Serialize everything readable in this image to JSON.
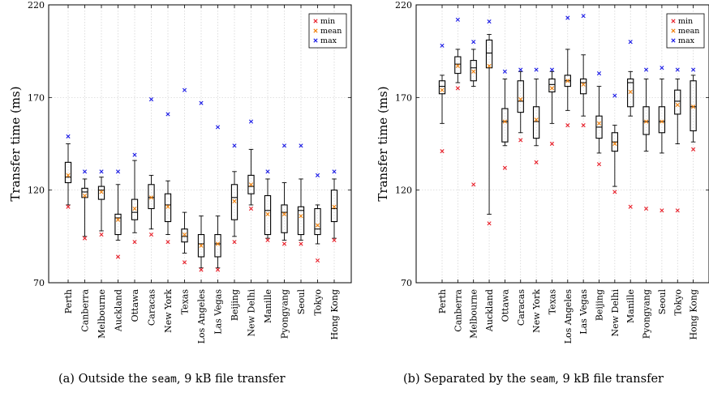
{
  "chart_data": [
    {
      "type": "box",
      "ylabel": "Transfer time (ms)",
      "ylim": [
        70,
        220
      ],
      "yticks": [
        70,
        120,
        170,
        220
      ],
      "grid": true,
      "legend_position": "top-right",
      "legend": {
        "min": "min",
        "mean": "mean",
        "max": "max"
      },
      "colors": {
        "min": "#e8202a",
        "mean": "#f07f0a",
        "max": "#1a1ae6",
        "box": "#000000"
      },
      "caption": {
        "label": "(a)",
        "pre": "Outside the ",
        "code": "seam",
        "post": ", 9 kB file transfer"
      },
      "categories": [
        "Perth",
        "Canberra",
        "Melbourne",
        "Auckland",
        "Ottawa",
        "Caracas",
        "New York",
        "Texas",
        "Los Angeles",
        "Las Vegas",
        "Beijing",
        "New Delhi",
        "Manille",
        "Pyongyang",
        "Seoul",
        "Tokyo",
        "Hong Kong"
      ],
      "boxes": [
        {
          "min": 111,
          "q1": 124,
          "median": 127,
          "q3": 135,
          "max": 149,
          "wlo": 112,
          "whi": 145,
          "mean": 128
        },
        {
          "min": 94,
          "q1": 116,
          "median": 119,
          "q3": 121,
          "max": 130,
          "wlo": 95,
          "whi": 126,
          "mean": 117
        },
        {
          "min": 96,
          "q1": 115,
          "median": 120,
          "q3": 122,
          "max": 130,
          "wlo": 98,
          "whi": 127,
          "mean": 119
        },
        {
          "min": 84,
          "q1": 96,
          "median": 105,
          "q3": 107,
          "max": 130,
          "wlo": 93,
          "whi": 123,
          "mean": 104
        },
        {
          "min": 92,
          "q1": 104,
          "median": 108,
          "q3": 115,
          "max": 139,
          "wlo": 97,
          "whi": 136,
          "mean": 110
        },
        {
          "min": 96,
          "q1": 110,
          "median": 116,
          "q3": 123,
          "max": 169,
          "wlo": 99,
          "whi": 128,
          "mean": 116
        },
        {
          "min": 92,
          "q1": 103,
          "median": 112,
          "q3": 118,
          "max": 161,
          "wlo": 96,
          "whi": 125,
          "mean": 111
        },
        {
          "min": 81,
          "q1": 92,
          "median": 95,
          "q3": 99,
          "max": 174,
          "wlo": 86,
          "whi": 108,
          "mean": 96
        },
        {
          "min": 77,
          "q1": 84,
          "median": 91,
          "q3": 96,
          "max": 167,
          "wlo": 78,
          "whi": 106,
          "mean": 90
        },
        {
          "min": 77,
          "q1": 84,
          "median": 91,
          "q3": 96,
          "max": 154,
          "wlo": 78,
          "whi": 106,
          "mean": 91
        },
        {
          "min": 92,
          "q1": 104,
          "median": 116,
          "q3": 123,
          "max": 144,
          "wlo": 95,
          "whi": 130,
          "mean": 114
        },
        {
          "min": 110,
          "q1": 118,
          "median": 122,
          "q3": 128,
          "max": 157,
          "wlo": 112,
          "whi": 142,
          "mean": 123
        },
        {
          "min": 93,
          "q1": 96,
          "median": 109,
          "q3": 117,
          "max": 130,
          "wlo": 94,
          "whi": 126,
          "mean": 107
        },
        {
          "min": 91,
          "q1": 97,
          "median": 108,
          "q3": 112,
          "max": 144,
          "wlo": 93,
          "whi": 124,
          "mean": 107
        },
        {
          "min": 91,
          "q1": 96,
          "median": 109,
          "q3": 111,
          "max": 144,
          "wlo": 93,
          "whi": 126,
          "mean": 106
        },
        {
          "min": 82,
          "q1": 96,
          "median": 99,
          "q3": 110,
          "max": 128,
          "wlo": 91,
          "whi": 112,
          "mean": 101
        },
        {
          "min": 93,
          "q1": 103,
          "median": 110,
          "q3": 120,
          "max": 130,
          "wlo": 94,
          "whi": 126,
          "mean": 111
        }
      ]
    },
    {
      "type": "box",
      "ylabel": "Transfer time (ms)",
      "ylim": [
        70,
        220
      ],
      "yticks": [
        70,
        120,
        170,
        220
      ],
      "grid": true,
      "legend_position": "top-right",
      "legend": {
        "min": "min",
        "mean": "mean",
        "max": "max"
      },
      "colors": {
        "min": "#e8202a",
        "mean": "#f07f0a",
        "max": "#1a1ae6",
        "box": "#000000"
      },
      "caption": {
        "label": "(b)",
        "pre": "Separated by the ",
        "code": "seam",
        "post": ", 9 kB file transfer"
      },
      "categories": [
        "Perth",
        "Canberra",
        "Melbourne",
        "Auckland",
        "Ottawa",
        "Caracas",
        "New York",
        "Texas",
        "Los Angeles",
        "Las Vegas",
        "Beijing",
        "New Delhi",
        "Manille",
        "Pyongyang",
        "Seoul",
        "Tokyo",
        "Hong Kong"
      ],
      "boxes": [
        {
          "min": 141,
          "q1": 172,
          "median": 176,
          "q3": 179,
          "max": 198,
          "wlo": 156,
          "whi": 182,
          "mean": 174
        },
        {
          "min": 175,
          "q1": 183,
          "median": 188,
          "q3": 192,
          "max": 212,
          "wlo": 178,
          "whi": 196,
          "mean": 187
        },
        {
          "min": 123,
          "q1": 179,
          "median": 186,
          "q3": 190,
          "max": 200,
          "wlo": 176,
          "whi": 196,
          "mean": 184
        },
        {
          "min": 102,
          "q1": 186,
          "median": 194,
          "q3": 201,
          "max": 211,
          "wlo": 107,
          "whi": 204,
          "mean": 187
        },
        {
          "min": 132,
          "q1": 146,
          "median": 157,
          "q3": 164,
          "max": 184,
          "wlo": 144,
          "whi": 180,
          "mean": 157
        },
        {
          "min": 147,
          "q1": 162,
          "median": 168,
          "q3": 179,
          "max": 185,
          "wlo": 151,
          "whi": 184,
          "mean": 169
        },
        {
          "min": 135,
          "q1": 148,
          "median": 157,
          "q3": 165,
          "max": 185,
          "wlo": 144,
          "whi": 180,
          "mean": 158
        },
        {
          "min": 145,
          "q1": 173,
          "median": 177,
          "q3": 180,
          "max": 185,
          "wlo": 156,
          "whi": 184,
          "mean": 175
        },
        {
          "min": 155,
          "q1": 176,
          "median": 179,
          "q3": 182,
          "max": 213,
          "wlo": 163,
          "whi": 196,
          "mean": 179
        },
        {
          "min": 155,
          "q1": 172,
          "median": 178,
          "q3": 180,
          "max": 214,
          "wlo": 160,
          "whi": 193,
          "mean": 177
        },
        {
          "min": 134,
          "q1": 148,
          "median": 154,
          "q3": 160,
          "max": 183,
          "wlo": 140,
          "whi": 176,
          "mean": 156
        },
        {
          "min": 119,
          "q1": 141,
          "median": 146,
          "q3": 151,
          "max": 171,
          "wlo": 122,
          "whi": 155,
          "mean": 145
        },
        {
          "min": 111,
          "q1": 165,
          "median": 178,
          "q3": 180,
          "max": 200,
          "wlo": 160,
          "whi": 184,
          "mean": 173
        },
        {
          "min": 110,
          "q1": 150,
          "median": 157,
          "q3": 165,
          "max": 185,
          "wlo": 141,
          "whi": 180,
          "mean": 157
        },
        {
          "min": 109,
          "q1": 151,
          "median": 157,
          "q3": 165,
          "max": 186,
          "wlo": 140,
          "whi": 180,
          "mean": 157
        },
        {
          "min": 109,
          "q1": 161,
          "median": 168,
          "q3": 174,
          "max": 185,
          "wlo": 145,
          "whi": 180,
          "mean": 166
        },
        {
          "min": 142,
          "q1": 152,
          "median": 165,
          "q3": 179,
          "max": 185,
          "wlo": 146,
          "whi": 182,
          "mean": 165
        }
      ]
    }
  ]
}
